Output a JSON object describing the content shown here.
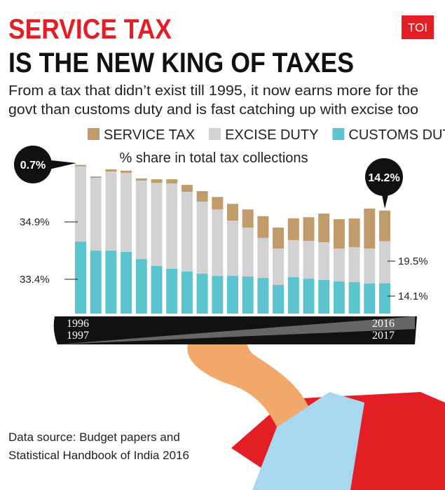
{
  "header": {
    "title_line1": "SERVICE TAX",
    "title_line2": "IS THE NEW KING OF TAXES",
    "subtitle_line1": "From a tax that didn’t exist till 1995, it now earns more for the",
    "subtitle_line2": "govt than customs duty and is fast catching up with excise too"
  },
  "logo": "TOI",
  "source_line1": "Data source: Budget papers and",
  "source_line2": "Statistical Handbook of India 2016",
  "chart_data": {
    "type": "stacked_bar",
    "subtitle": "% share in total tax collections",
    "categories": [
      "1996\n1997",
      null,
      null,
      null,
      null,
      null,
      null,
      null,
      null,
      null,
      null,
      null,
      null,
      null,
      null,
      null,
      null,
      null,
      null,
      null,
      "2016\n2017"
    ],
    "series": [
      {
        "name": "CUSTOMS DUTY",
        "color": "#5bc4cf",
        "values": [
          33.4,
          29.2,
          29.2,
          28.6,
          25.3,
          22.1,
          20.8,
          19.5,
          18.5,
          17.5,
          17.5,
          17.2,
          16.6,
          13.3,
          16.9,
          16.2,
          15.6,
          14.9,
          14.6,
          14.0,
          14.1
        ],
        "value_labels": [
          "33.4%",
          null,
          null,
          null,
          null,
          null,
          null,
          null,
          null,
          null,
          null,
          null,
          null,
          null,
          null,
          null,
          null,
          null,
          null,
          null,
          "14.1%"
        ]
      },
      {
        "name": "EXCISE DUTY",
        "color": "#d2d2d2",
        "values": [
          34.9,
          33.8,
          36.7,
          36.7,
          36.4,
          38.6,
          39.6,
          37.0,
          33.4,
          30.8,
          25.6,
          22.7,
          18.5,
          16.9,
          17.2,
          17.5,
          17.5,
          15.3,
          16.2,
          16.2,
          19.5
        ],
        "value_labels": [
          "34.9%",
          null,
          null,
          null,
          null,
          null,
          null,
          null,
          null,
          null,
          null,
          null,
          null,
          null,
          null,
          null,
          null,
          null,
          null,
          null,
          "19.5%"
        ]
      },
      {
        "name": "SERVICE TAX",
        "color": "#c29b6b",
        "values": [
          0.7,
          0.6,
          1.0,
          1.0,
          1.0,
          1.6,
          1.9,
          3.2,
          4.9,
          5.8,
          7.8,
          8.4,
          10.1,
          9.7,
          10.1,
          11.0,
          13.3,
          13.6,
          13.3,
          18.5,
          14.2
        ],
        "value_labels": [
          "0.7%",
          null,
          null,
          null,
          null,
          null,
          null,
          null,
          null,
          null,
          null,
          null,
          null,
          null,
          null,
          null,
          null,
          null,
          null,
          null,
          "14.2%"
        ]
      }
    ],
    "legend_order": [
      2,
      1,
      0
    ]
  }
}
